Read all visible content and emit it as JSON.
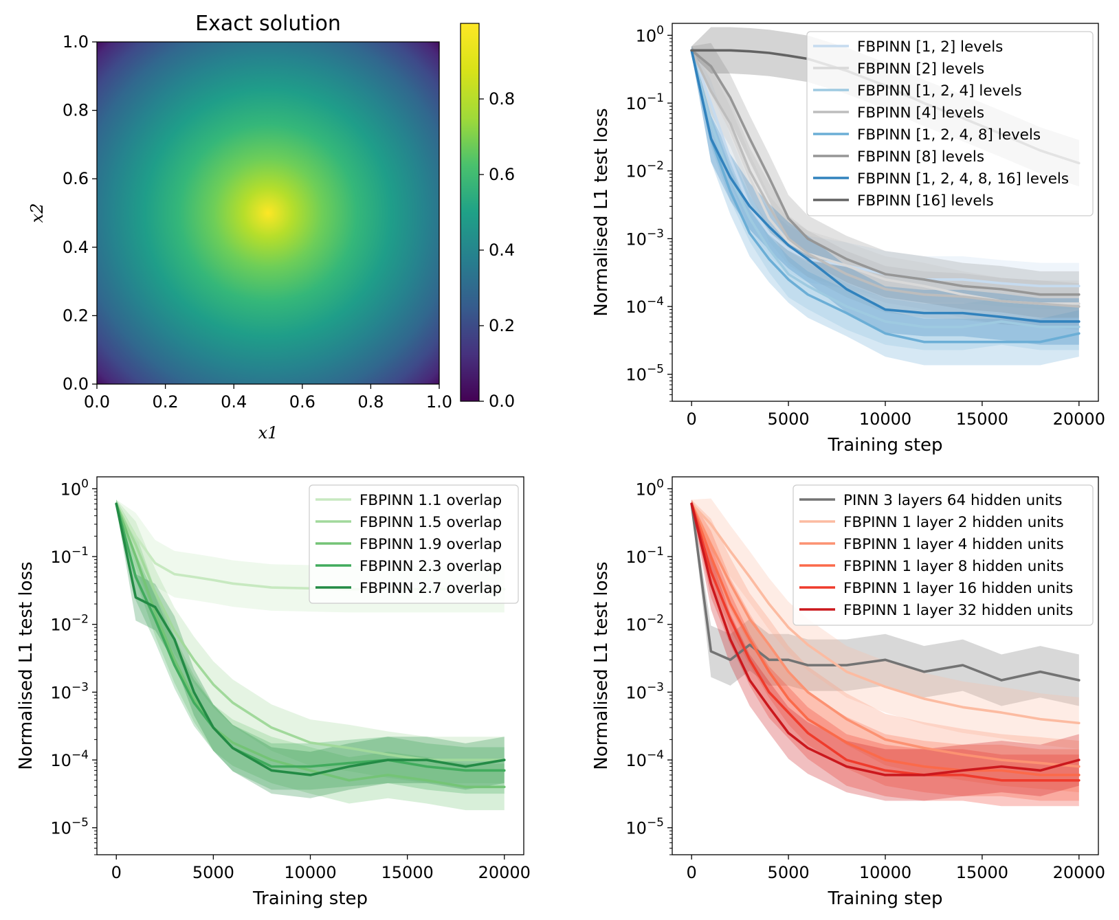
{
  "chart_data": [
    {
      "type": "heatmap",
      "title": "Exact solution",
      "xlabel": "x1",
      "ylabel": "x2",
      "xlim": [
        0.0,
        1.0
      ],
      "ylim": [
        0.0,
        1.0
      ],
      "xticks": [
        "0.0",
        "0.2",
        "0.4",
        "0.6",
        "0.8",
        "1.0"
      ],
      "yticks": [
        "0.0",
        "0.2",
        "0.4",
        "0.6",
        "0.8",
        "1.0"
      ],
      "function": "sin(pi*x1)*sin(pi*x2)",
      "colorbar": {
        "range": [
          0.0,
          1.0
        ],
        "ticks": [
          "0.0",
          "0.2",
          "0.4",
          "0.6",
          "0.8"
        ],
        "colormap": "viridis"
      }
    },
    {
      "type": "line",
      "xlabel": "Training step",
      "ylabel": "Normalised L1 test loss",
      "yscale": "log",
      "xlim": [
        -1000,
        21000
      ],
      "ylim": [
        4e-06,
        1.5
      ],
      "xticks": [
        "0",
        "5000",
        "10000",
        "15000",
        "20000"
      ],
      "yticks": [
        "10^0",
        "10^-1",
        "10^-2",
        "10^-3",
        "10^-4",
        "10^-5"
      ],
      "legend": "top-right",
      "x": [
        0,
        1000,
        2000,
        3000,
        4000,
        5000,
        6000,
        8000,
        10000,
        12000,
        14000,
        16000,
        18000,
        20000
      ],
      "series": [
        {
          "name": "FBPINN [1, 2] levels",
          "color": "#c6dbef",
          "values": [
            0.6,
            0.1,
            0.015,
            0.003,
            0.0012,
            0.0007,
            0.0005,
            0.0004,
            0.0003,
            0.00025,
            0.00025,
            0.00022,
            0.0002,
            0.0002
          ]
        },
        {
          "name": "FBPINN [2] levels",
          "color": "#d9d9d9",
          "values": [
            0.6,
            0.15,
            0.04,
            0.008,
            0.002,
            0.0009,
            0.0006,
            0.0004,
            0.00025,
            0.0002,
            0.00015,
            0.00012,
            0.00011,
            0.00011
          ]
        },
        {
          "name": "FBPINN [1, 2, 4] levels",
          "color": "#9ecae1",
          "values": [
            0.6,
            0.05,
            0.008,
            0.002,
            0.0007,
            0.0003,
            0.0002,
            0.0001,
            6e-05,
            5e-05,
            5e-05,
            6e-05,
            5e-05,
            5e-05
          ]
        },
        {
          "name": "FBPINN [4] levels",
          "color": "#bdbdbd",
          "values": [
            0.6,
            0.15,
            0.05,
            0.01,
            0.003,
            0.001,
            0.0006,
            0.0003,
            0.00018,
            0.00015,
            0.00014,
            0.00012,
            0.00011,
            0.0001
          ]
        },
        {
          "name": "FBPINN [1, 2, 4, 8] levels",
          "color": "#6baed6",
          "values": [
            0.6,
            0.03,
            0.005,
            0.0012,
            0.0005,
            0.00025,
            0.00015,
            8e-05,
            4e-05,
            3e-05,
            3e-05,
            3e-05,
            3e-05,
            4e-05
          ]
        },
        {
          "name": "FBPINN [8] levels",
          "color": "#969696",
          "values": [
            0.6,
            0.35,
            0.12,
            0.03,
            0.008,
            0.002,
            0.001,
            0.0005,
            0.0003,
            0.00025,
            0.0002,
            0.00018,
            0.00015,
            0.00015
          ]
        },
        {
          "name": "FBPINN [1, 2, 4, 8, 16] levels",
          "color": "#3182bd",
          "values": [
            0.6,
            0.03,
            0.008,
            0.003,
            0.0015,
            0.0008,
            0.0005,
            0.00018,
            9e-05,
            8e-05,
            8e-05,
            7e-05,
            6e-05,
            6e-05
          ]
        },
        {
          "name": "FBPINN [16] levels",
          "color": "#636363",
          "values": [
            0.6,
            0.6,
            0.6,
            0.58,
            0.55,
            0.5,
            0.45,
            0.3,
            0.18,
            0.1,
            0.06,
            0.035,
            0.02,
            0.013
          ]
        }
      ]
    },
    {
      "type": "line",
      "xlabel": "Training step",
      "ylabel": "Normalised L1 test loss",
      "yscale": "log",
      "xlim": [
        -1000,
        21000
      ],
      "ylim": [
        4e-06,
        1.5
      ],
      "xticks": [
        "0",
        "5000",
        "10000",
        "15000",
        "20000"
      ],
      "yticks": [
        "10^0",
        "10^-1",
        "10^-2",
        "10^-3",
        "10^-4",
        "10^-5"
      ],
      "legend": "top-right",
      "x": [
        0,
        1000,
        2000,
        3000,
        4000,
        5000,
        6000,
        8000,
        10000,
        12000,
        14000,
        16000,
        18000,
        20000
      ],
      "series": [
        {
          "name": "FBPINN 1.1 overlap",
          "color": "#c7e9c0",
          "values": [
            0.6,
            0.2,
            0.08,
            0.055,
            0.05,
            0.045,
            0.04,
            0.035,
            0.034,
            0.033,
            0.033,
            0.033,
            0.033,
            0.033
          ]
        },
        {
          "name": "FBPINN 1.5 overlap",
          "color": "#a1d99b",
          "values": [
            0.6,
            0.15,
            0.03,
            0.008,
            0.003,
            0.0013,
            0.0007,
            0.0003,
            0.00018,
            0.00015,
            0.00012,
            0.0001,
            0.0001,
            0.0001
          ]
        },
        {
          "name": "FBPINN 1.9 overlap",
          "color": "#74c476",
          "values": [
            0.6,
            0.1,
            0.015,
            0.003,
            0.0008,
            0.0003,
            0.00018,
            0.0001,
            7e-05,
            5e-05,
            6e-05,
            5e-05,
            4e-05,
            4e-05
          ]
        },
        {
          "name": "FBPINN 2.3 overlap",
          "color": "#41ab5d",
          "values": [
            0.6,
            0.05,
            0.012,
            0.0025,
            0.0007,
            0.0003,
            0.00015,
            8e-05,
            8e-05,
            9e-05,
            0.0001,
            8e-05,
            7e-05,
            7e-05
          ]
        },
        {
          "name": "FBPINN 2.7 overlap",
          "color": "#238b45",
          "values": [
            0.6,
            0.025,
            0.018,
            0.006,
            0.001,
            0.0003,
            0.00015,
            7e-05,
            6e-05,
            8e-05,
            0.0001,
            0.0001,
            8e-05,
            0.0001
          ]
        }
      ]
    },
    {
      "type": "line",
      "xlabel": "Training step",
      "ylabel": "Normalised L1 test loss",
      "yscale": "log",
      "xlim": [
        -1000,
        21000
      ],
      "ylim": [
        4e-06,
        1.5
      ],
      "xticks": [
        "0",
        "5000",
        "10000",
        "15000",
        "20000"
      ],
      "yticks": [
        "10^0",
        "10^-1",
        "10^-2",
        "10^-3",
        "10^-4",
        "10^-5"
      ],
      "legend": "top-right",
      "x": [
        0,
        1000,
        2000,
        3000,
        4000,
        5000,
        6000,
        8000,
        10000,
        12000,
        14000,
        16000,
        18000,
        20000
      ],
      "series": [
        {
          "name": "PINN 3 layers 64 hidden units",
          "color": "#737373",
          "values": [
            0.6,
            0.004,
            0.003,
            0.005,
            0.003,
            0.003,
            0.0025,
            0.0025,
            0.003,
            0.002,
            0.0025,
            0.0015,
            0.002,
            0.0015
          ]
        },
        {
          "name": "FBPINN 1 layer 2 hidden units",
          "color": "#fcbba1",
          "values": [
            0.6,
            0.3,
            0.12,
            0.05,
            0.02,
            0.009,
            0.005,
            0.002,
            0.0012,
            0.0008,
            0.0006,
            0.0005,
            0.0004,
            0.00035
          ]
        },
        {
          "name": "FBPINN 1 layer 4 hidden units",
          "color": "#fc9272",
          "values": [
            0.6,
            0.15,
            0.04,
            0.012,
            0.005,
            0.002,
            0.001,
            0.0004,
            0.0002,
            0.00015,
            0.00012,
            0.0001,
            9e-05,
            8e-05
          ]
        },
        {
          "name": "FBPINN 1 layer 8 hidden units",
          "color": "#fb6a4a",
          "values": [
            0.6,
            0.1,
            0.02,
            0.006,
            0.002,
            0.0008,
            0.0004,
            0.00018,
            0.0001,
            8e-05,
            7e-05,
            7e-05,
            6e-05,
            6e-05
          ]
        },
        {
          "name": "FBPINN 1 layer 16 hidden units",
          "color": "#ef3b2c",
          "values": [
            0.6,
            0.06,
            0.012,
            0.003,
            0.001,
            0.0005,
            0.00025,
            0.0001,
            7e-05,
            6e-05,
            6e-05,
            5e-05,
            5e-05,
            5e-05
          ]
        },
        {
          "name": "FBPINN 1 layer 32 hidden units",
          "color": "#cb181d",
          "values": [
            0.6,
            0.04,
            0.006,
            0.0015,
            0.0006,
            0.00025,
            0.00015,
            8e-05,
            6e-05,
            6e-05,
            7e-05,
            8e-05,
            7e-05,
            0.0001
          ]
        }
      ]
    }
  ]
}
